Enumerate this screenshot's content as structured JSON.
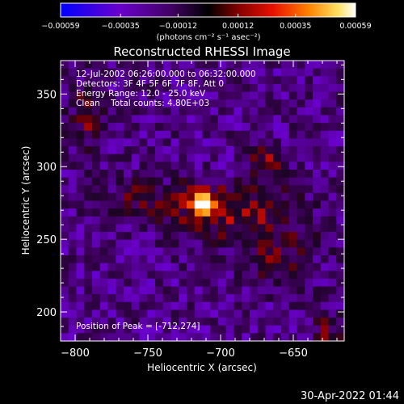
{
  "chart_data": {
    "type": "heatmap",
    "title": "Reconstructed RHESSI Image",
    "xlabel": "Heliocentric X (arcsec)",
    "ylabel": "Heliocentric Y (arcsec)",
    "xlim": [
      -810,
      -615
    ],
    "ylim": [
      180,
      373
    ],
    "x_ticks": [
      -800,
      -750,
      -700,
      -650
    ],
    "y_ticks": [
      200,
      250,
      300,
      350
    ],
    "x_tick_labels": [
      "−800",
      "−750",
      "−700",
      "−650"
    ],
    "y_tick_labels": [
      "200",
      "250",
      "300",
      "350"
    ],
    "colorbar": {
      "min": -0.00059,
      "max": 0.00059,
      "ticks": [
        -0.00059,
        -0.00035,
        -0.00012,
        0.00012,
        0.00035,
        0.00059
      ],
      "tick_labels": [
        "−0.00059",
        "−0.00035",
        "−0.00012",
        "0.00012",
        "0.00035",
        "0.00059"
      ],
      "units_label": "(photons cm⁻² s⁻¹ asec⁻²)",
      "colors": [
        "#0000ff",
        "#6a00cc",
        "#400060",
        "#000000",
        "#800000",
        "#e81000",
        "#ff8000",
        "#ffe060",
        "#ffffff"
      ]
    },
    "annotations": [
      "12-Jul-2002 06:26:00.000 to 06:32:00.000",
      "Detectors: 3F 4F 5F 6F 7F 8F, Att 0",
      "Energy Range: 12.0 - 25.0 keV",
      "Clean    Total counts: 4.80E+03"
    ],
    "peak_label": "Position of Peak = [-712,274]",
    "peak": {
      "x": -712,
      "y": 274
    }
  },
  "footer": {
    "timestamp": "30-Apr-2022 01:44"
  }
}
